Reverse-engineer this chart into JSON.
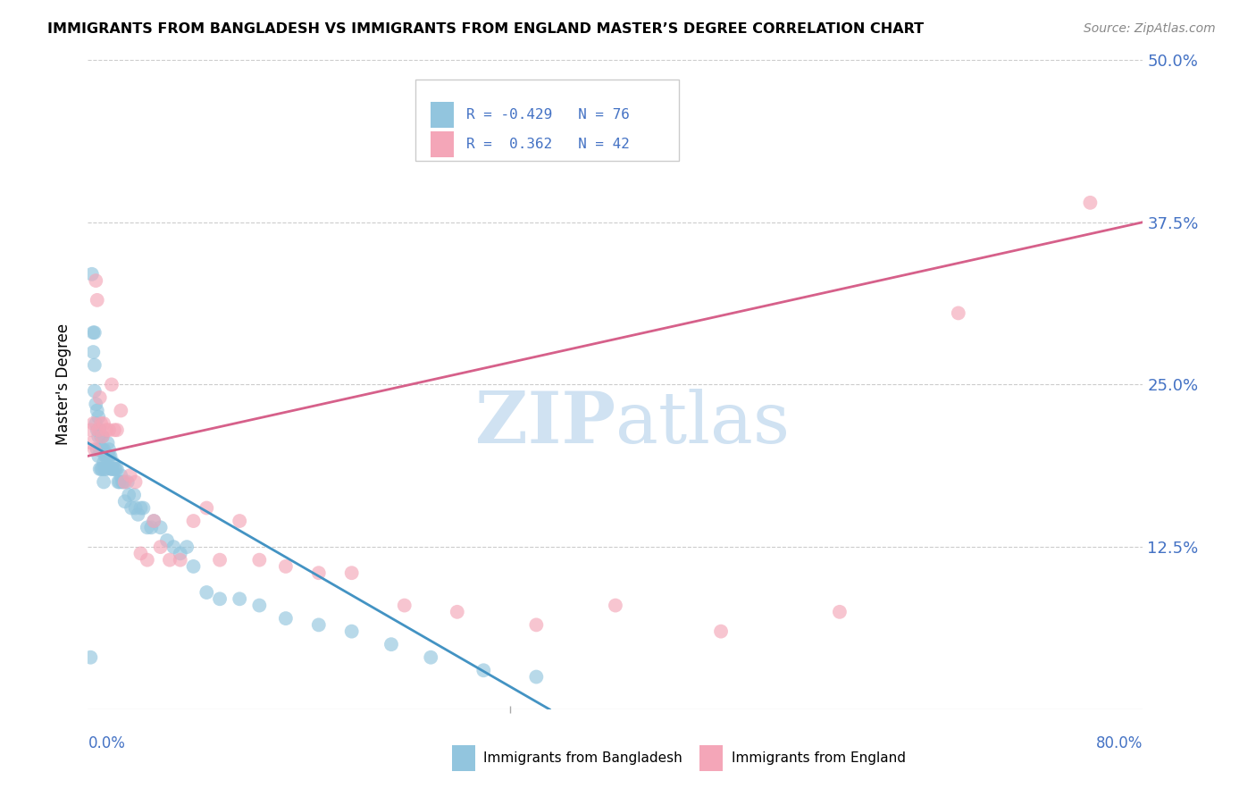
{
  "title": "IMMIGRANTS FROM BANGLADESH VS IMMIGRANTS FROM ENGLAND MASTER’S DEGREE CORRELATION CHART",
  "source": "Source: ZipAtlas.com",
  "ylabel": "Master's Degree",
  "yticks": [
    0.0,
    0.125,
    0.25,
    0.375,
    0.5
  ],
  "ytick_labels": [
    "",
    "12.5%",
    "25.0%",
    "37.5%",
    "50.0%"
  ],
  "xlim": [
    0.0,
    0.8
  ],
  "ylim": [
    0.0,
    0.5
  ],
  "color_blue": "#92c5de",
  "color_pink": "#f4a6b8",
  "line_color_blue": "#4393c3",
  "line_color_pink": "#d6608a",
  "bangladesh_x": [
    0.002,
    0.003,
    0.004,
    0.004,
    0.005,
    0.005,
    0.005,
    0.006,
    0.006,
    0.007,
    0.007,
    0.007,
    0.008,
    0.008,
    0.008,
    0.009,
    0.009,
    0.009,
    0.01,
    0.01,
    0.01,
    0.011,
    0.011,
    0.011,
    0.012,
    0.012,
    0.012,
    0.013,
    0.013,
    0.014,
    0.014,
    0.015,
    0.015,
    0.016,
    0.016,
    0.017,
    0.018,
    0.018,
    0.019,
    0.02,
    0.021,
    0.022,
    0.023,
    0.024,
    0.025,
    0.026,
    0.027,
    0.028,
    0.03,
    0.031,
    0.033,
    0.035,
    0.036,
    0.038,
    0.04,
    0.042,
    0.045,
    0.048,
    0.05,
    0.055,
    0.06,
    0.065,
    0.07,
    0.075,
    0.08,
    0.09,
    0.1,
    0.115,
    0.13,
    0.15,
    0.175,
    0.2,
    0.23,
    0.26,
    0.3,
    0.34
  ],
  "bangladesh_y": [
    0.04,
    0.335,
    0.29,
    0.275,
    0.29,
    0.265,
    0.245,
    0.235,
    0.22,
    0.23,
    0.215,
    0.2,
    0.225,
    0.21,
    0.195,
    0.215,
    0.2,
    0.185,
    0.21,
    0.2,
    0.185,
    0.21,
    0.2,
    0.185,
    0.2,
    0.19,
    0.175,
    0.195,
    0.185,
    0.195,
    0.185,
    0.205,
    0.195,
    0.2,
    0.195,
    0.195,
    0.185,
    0.185,
    0.19,
    0.185,
    0.185,
    0.185,
    0.175,
    0.175,
    0.18,
    0.175,
    0.175,
    0.16,
    0.175,
    0.165,
    0.155,
    0.165,
    0.155,
    0.15,
    0.155,
    0.155,
    0.14,
    0.14,
    0.145,
    0.14,
    0.13,
    0.125,
    0.12,
    0.125,
    0.11,
    0.09,
    0.085,
    0.085,
    0.08,
    0.07,
    0.065,
    0.06,
    0.05,
    0.04,
    0.03,
    0.025
  ],
  "england_x": [
    0.002,
    0.003,
    0.004,
    0.005,
    0.006,
    0.007,
    0.008,
    0.009,
    0.01,
    0.011,
    0.012,
    0.014,
    0.016,
    0.018,
    0.02,
    0.022,
    0.025,
    0.028,
    0.032,
    0.036,
    0.04,
    0.045,
    0.05,
    0.055,
    0.062,
    0.07,
    0.08,
    0.09,
    0.1,
    0.115,
    0.13,
    0.15,
    0.175,
    0.2,
    0.24,
    0.28,
    0.34,
    0.4,
    0.48,
    0.57,
    0.66,
    0.76
  ],
  "england_y": [
    0.215,
    0.205,
    0.22,
    0.2,
    0.33,
    0.315,
    0.215,
    0.24,
    0.22,
    0.21,
    0.22,
    0.215,
    0.215,
    0.25,
    0.215,
    0.215,
    0.23,
    0.175,
    0.18,
    0.175,
    0.12,
    0.115,
    0.145,
    0.125,
    0.115,
    0.115,
    0.145,
    0.155,
    0.115,
    0.145,
    0.115,
    0.11,
    0.105,
    0.105,
    0.08,
    0.075,
    0.065,
    0.08,
    0.06,
    0.075,
    0.305,
    0.39
  ],
  "blue_line_x0": 0.0,
  "blue_line_y0": 0.205,
  "blue_line_x1": 0.35,
  "blue_line_y1": 0.0,
  "pink_line_x0": 0.0,
  "pink_line_y0": 0.195,
  "pink_line_x1": 0.8,
  "pink_line_y1": 0.375
}
